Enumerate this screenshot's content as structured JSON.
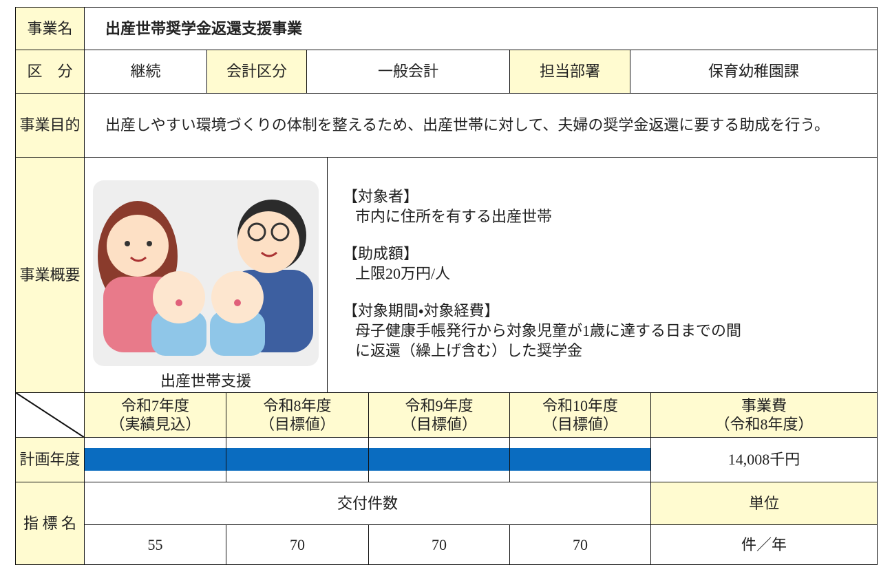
{
  "header": {
    "label": "事業名",
    "title": "出産世帯奨学金返還支援事業"
  },
  "category": {
    "label": "区　分",
    "value": "継続",
    "account_label": "会計区分",
    "account": "一般会計",
    "dept_label": "担当部署",
    "dept": "保育幼稚園課"
  },
  "purpose": {
    "label": "事業目的",
    "text": "出産しやすい環境づくりの体制を整えるため、出産世帯に対して、夫婦の奨学金返還に要する助成を行う。"
  },
  "overview": {
    "label": "事業概要",
    "image_caption": "出産世帯支援",
    "items": [
      {
        "heading": "【対象者】",
        "lines": [
          "市内に住所を有する出産世帯"
        ]
      },
      {
        "heading": "【助成額】",
        "lines": [
          "上限20万円/人"
        ]
      },
      {
        "heading": "【対象期間・対象経費】",
        "lines": [
          "母子健康手帳発行から対象児童が1歳に達する日までの間",
          "に返還（繰上げ含む）した奨学金"
        ]
      }
    ]
  },
  "plan": {
    "years": [
      {
        "year": "令和7年度",
        "note": "（実績見込）"
      },
      {
        "year": "令和8年度",
        "note": "（目標値）"
      },
      {
        "year": "令和9年度",
        "note": "（目標値）"
      },
      {
        "year": "令和10年度",
        "note": "（目標値）"
      }
    ],
    "cost_label": "事業費",
    "cost_note": "（令和8年度）",
    "row_label": "計画年度",
    "cost": "14,008千円"
  },
  "indicator": {
    "label": "指 標 名",
    "name": "交付件数",
    "unit_label": "単位",
    "values": [
      55,
      70,
      70,
      70
    ],
    "unit": "件／年"
  }
}
